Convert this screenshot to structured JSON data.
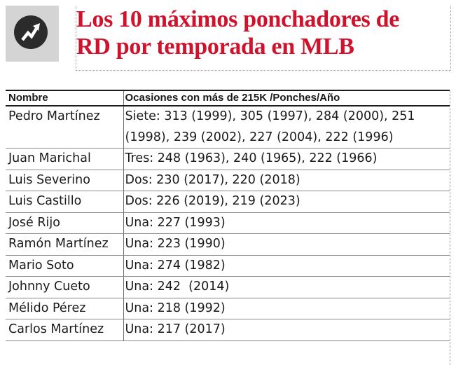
{
  "badge": {
    "icon": "trend-arrow-icon",
    "background": "#d4d4d4",
    "circle_color": "#2b2b2b"
  },
  "title": {
    "line1": "Los 10 máximos ponchadores de",
    "line2": "RD por temporada en MLB",
    "color": "#d0122c"
  },
  "table": {
    "columns": [
      "Nombre",
      "Ocasiones con más de 215K /Ponches/Año"
    ],
    "rows": [
      {
        "name": "Pedro Martínez",
        "detail": "Siete: 313 (1999), 305 (1997), 284 (2000), 251 (1998), 239 (2002), 227 (2004), 222 (1996)"
      },
      {
        "name": "Juan Marichal",
        "detail": "Tres: 248 (1963), 240 (1965), 222 (1966)"
      },
      {
        "name": "Luis Severino",
        "detail": "Dos: 230 (2017), 220 (2018)"
      },
      {
        "name": "Luis Castillo",
        "detail": "Dos: 226 (2019), 219 (2023)"
      },
      {
        "name": "José Rijo",
        "detail": "Una: 227 (1993)"
      },
      {
        "name": "Ramón Martínez",
        "detail": "Una: 223 (1990)"
      },
      {
        "name": "Mario Soto",
        "detail": "Una: 274 (1982)"
      },
      {
        "name": "Johnny Cueto",
        "detail": "Una: 242  (2014)"
      },
      {
        "name": "Mélido Pérez",
        "detail": "Una: 218 (1992)"
      },
      {
        "name": "Carlos Martínez",
        "detail": "Una: 217 (2017)"
      }
    ]
  }
}
